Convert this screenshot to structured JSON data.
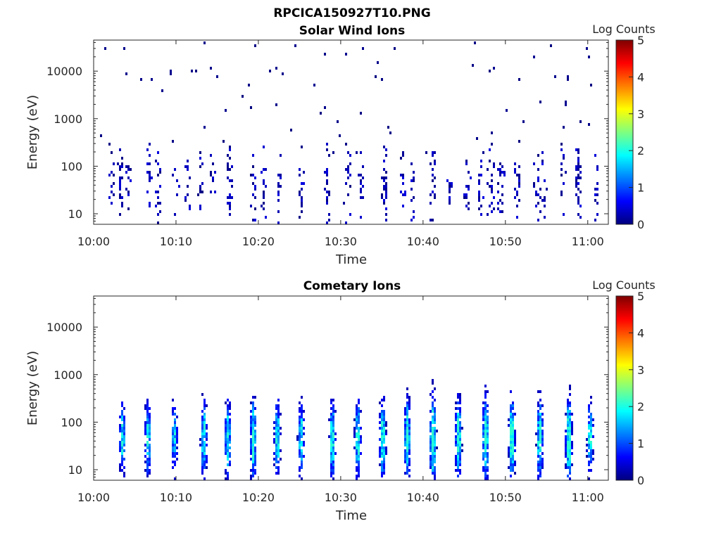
{
  "figure_title": "RPCICA150927T10.PNG",
  "colors": {
    "pixel_low": "#00007f",
    "axis": "#262626",
    "colormap": [
      "#00007f",
      "#0000ff",
      "#007fff",
      "#00ffff",
      "#7fff7f",
      "#ffff00",
      "#ff7f00",
      "#ff0000",
      "#7f0000"
    ]
  },
  "chart_data": [
    {
      "type": "heatmap",
      "title": "Solar Wind Ions",
      "xlabel": "Time",
      "ylabel": "Energy (eV)",
      "x_ticks": [
        "10:00",
        "10:10",
        "10:20",
        "10:30",
        "10:40",
        "10:50",
        "11:00"
      ],
      "x_tick_minutes": [
        0,
        10,
        20,
        30,
        40,
        50,
        60
      ],
      "xlim_minutes": [
        0,
        62.5
      ],
      "y_scale": "log",
      "y_ticks": [
        "10",
        "100",
        "1000",
        "10000"
      ],
      "y_tick_values": [
        10,
        100,
        1000,
        10000
      ],
      "ylim": [
        6,
        45000
      ],
      "colorbar": {
        "label": "Log Counts",
        "range": [
          0,
          5
        ],
        "ticks": [
          "0",
          "1",
          "2",
          "3",
          "4",
          "5"
        ]
      },
      "grid": false,
      "sweeps_minutes": [
        2.2,
        3.3,
        4.2,
        6.8,
        7.8,
        10.0,
        11.5,
        13.0,
        14.5,
        16.5,
        19.4,
        20.6,
        22.5,
        25.2,
        28.4,
        30.8,
        32.5,
        35.3,
        37.6,
        38.8,
        41.2,
        43.3,
        45.4,
        47.0,
        48.2,
        49.5,
        51.5,
        53.8,
        54.6,
        57.0,
        58.8,
        61.0
      ],
      "weights": [
        0.6,
        1.2,
        0.9,
        1.3,
        0.8,
        0.7,
        0.9,
        0.9,
        0.8,
        1.0,
        1.0,
        1.0,
        0.9,
        1.1,
        0.9,
        1.2,
        1.0,
        1.2,
        0.8,
        0.9,
        1.2,
        0.9,
        1.1,
        1.0,
        1.3,
        1.0,
        0.9,
        1.0,
        1.2,
        0.9,
        1.4,
        0.8
      ],
      "energy_center_ev": 40,
      "value_level_max": 0.5,
      "background_scatter": true
    },
    {
      "type": "heatmap",
      "title": "Cometary Ions",
      "xlabel": "Time",
      "ylabel": "Energy (eV)",
      "x_ticks": [
        "10:00",
        "10:10",
        "10:20",
        "10:30",
        "10:40",
        "10:50",
        "11:00"
      ],
      "x_tick_minutes": [
        0,
        10,
        20,
        30,
        40,
        50,
        60
      ],
      "xlim_minutes": [
        0,
        62.5
      ],
      "y_scale": "log",
      "y_ticks": [
        "10",
        "100",
        "1000",
        "10000"
      ],
      "y_tick_values": [
        10,
        100,
        1000,
        10000
      ],
      "ylim": [
        6,
        45000
      ],
      "colorbar": {
        "label": "Log Counts",
        "range": [
          0,
          5
        ],
        "ticks": [
          "0",
          "1",
          "2",
          "3",
          "4",
          "5"
        ]
      },
      "grid": false,
      "sweeps_minutes": [
        3.5,
        6.6,
        9.8,
        13.4,
        16.3,
        19.4,
        22.3,
        25.2,
        29.0,
        32.1,
        35.1,
        38.1,
        41.2,
        44.3,
        47.6,
        50.8,
        54.2,
        57.7,
        60.3
      ],
      "weights": [
        1.0,
        1.0,
        0.9,
        1.1,
        1.1,
        1.2,
        1.1,
        1.0,
        1.1,
        1.1,
        1.2,
        1.2,
        1.4,
        1.2,
        1.3,
        1.3,
        1.2,
        1.3,
        1.0
      ],
      "energy_center_ev": 45,
      "value_level_max": 2.1,
      "background_scatter": false
    }
  ]
}
